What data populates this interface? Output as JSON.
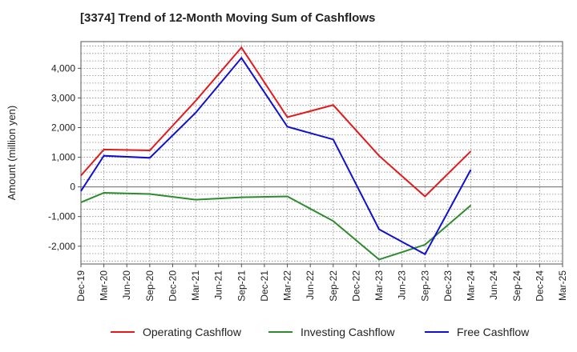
{
  "chart_data": {
    "type": "line",
    "title": "[3374]  Trend of 12-Month Moving Sum of Cashflows",
    "xlabel": "",
    "ylabel": "Amount (million yen)",
    "ylim": [
      -2600,
      4900
    ],
    "yticks": [
      -2000,
      -1000,
      0,
      1000,
      2000,
      3000,
      4000
    ],
    "ytick_labels": [
      "-2,000",
      "-1,000",
      "0",
      "1,000",
      "2,000",
      "3,000",
      "4,000"
    ],
    "categories": [
      "Dec-19",
      "Mar-20",
      "Jun-20",
      "Sep-20",
      "Dec-20",
      "Mar-21",
      "Jun-21",
      "Sep-21",
      "Dec-21",
      "Mar-22",
      "Jun-22",
      "Sep-22",
      "Dec-22",
      "Mar-23",
      "Jun-23",
      "Sep-23",
      "Dec-23",
      "Mar-24",
      "Jun-24",
      "Sep-24",
      "Dec-24",
      "Mar-25"
    ],
    "grid": true,
    "legend_position": "bottom",
    "series": [
      {
        "name": "Operating Cashflow",
        "color": "#e31a1c",
        "values": [
          380,
          1260,
          null,
          1230,
          null,
          2900,
          null,
          4700,
          null,
          2350,
          null,
          2760,
          null,
          1050,
          null,
          -320,
          null,
          1200,
          null,
          null,
          null,
          null
        ]
      },
      {
        "name": "Investing Cashflow",
        "color": "#2e8b2e",
        "values": [
          -520,
          -200,
          null,
          -240,
          null,
          -430,
          null,
          -350,
          null,
          -320,
          null,
          -1150,
          null,
          -2450,
          null,
          -1950,
          null,
          -620,
          null,
          null,
          null,
          null
        ]
      },
      {
        "name": "Free Cashflow",
        "color": "#1010d0",
        "values": [
          -140,
          1050,
          null,
          980,
          null,
          2500,
          null,
          4350,
          null,
          2030,
          null,
          1600,
          null,
          -1430,
          null,
          -2270,
          null,
          580,
          null,
          null,
          null,
          null
        ]
      }
    ]
  }
}
